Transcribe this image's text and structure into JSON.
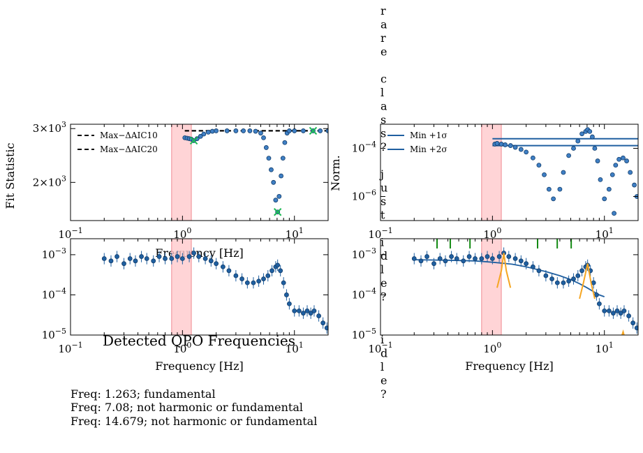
{
  "chart_data": [
    {
      "id": "fit-statistic",
      "type": "scatter",
      "xlabel": "Frequency [Hz]",
      "ylabel": "Fit Statistic",
      "xscale": "log",
      "yscale": "log",
      "xlim": [
        0.1,
        20
      ],
      "ylim": [
        1500,
        3100
      ],
      "xticks": [
        {
          "value": 0.1,
          "label": "10^-1"
        },
        {
          "value": 1,
          "label": "10^0"
        },
        {
          "value": 10,
          "label": "10^1"
        }
      ],
      "yticks": [
        {
          "value": 2000,
          "label": "2×10^3"
        },
        {
          "value": 3000,
          "label": "3×10^3"
        }
      ],
      "shaded_band": [
        0.8,
        1.2
      ],
      "reference_lines": [
        {
          "name": "Max−ΔAIC10",
          "y": 2950,
          "style": "dashed"
        },
        {
          "name": "Max−ΔAIC20",
          "y": 2950,
          "style": "dashed"
        }
      ],
      "legend": {
        "position": "top-left",
        "entries": [
          "Max−ΔAIC10",
          "Max−ΔAIC20"
        ]
      },
      "points": [
        [
          1.05,
          2800
        ],
        [
          1.1,
          2790
        ],
        [
          1.15,
          2780
        ],
        [
          1.2,
          2770
        ],
        [
          1.26,
          2740
        ],
        [
          1.35,
          2780
        ],
        [
          1.45,
          2830
        ],
        [
          1.55,
          2880
        ],
        [
          1.7,
          2920
        ],
        [
          1.85,
          2940
        ],
        [
          2.0,
          2950
        ],
        [
          2.5,
          2950
        ],
        [
          3.0,
          2950
        ],
        [
          3.5,
          2950
        ],
        [
          4.0,
          2950
        ],
        [
          4.5,
          2940
        ],
        [
          5.0,
          2900
        ],
        [
          5.3,
          2800
        ],
        [
          5.6,
          2600
        ],
        [
          5.9,
          2400
        ],
        [
          6.2,
          2200
        ],
        [
          6.5,
          2000
        ],
        [
          6.8,
          1750
        ],
        [
          7.08,
          1600
        ],
        [
          7.3,
          1800
        ],
        [
          7.6,
          2100
        ],
        [
          7.9,
          2400
        ],
        [
          8.2,
          2700
        ],
        [
          8.6,
          2900
        ],
        [
          9.0,
          2950
        ],
        [
          10,
          2950
        ],
        [
          12,
          2950
        ],
        [
          14.679,
          2950
        ],
        [
          17,
          2950
        ],
        [
          20,
          2950
        ]
      ],
      "markers": [
        [
          1.263,
          2740
        ],
        [
          7.08,
          1600
        ],
        [
          14.679,
          2950
        ]
      ]
    },
    {
      "id": "normalized",
      "type": "scatter",
      "xlabel": "",
      "ylabel": "Norm.",
      "xscale": "log",
      "yscale": "log",
      "xlim": [
        0.1,
        20
      ],
      "ylim": [
        1e-07,
        0.001
      ],
      "xticks": [
        {
          "value": 0.1,
          "label": "10^-1"
        },
        {
          "value": 1,
          "label": "10^0"
        },
        {
          "value": 10,
          "label": "10^1"
        }
      ],
      "yticks": [
        {
          "value": 1e-06,
          "label": "10^-6"
        },
        {
          "value": 0.0001,
          "label": "10^-4"
        }
      ],
      "shaded_band": [
        0.8,
        1.2
      ],
      "reference_lines": [
        {
          "name": "Min +1σ",
          "y": 0.00025,
          "style": "solid"
        },
        {
          "name": "Min +2σ",
          "y": 0.00013,
          "style": "solid"
        }
      ],
      "legend": {
        "position": "top-left",
        "entries": [
          "Min +1σ",
          "Min +2σ"
        ]
      },
      "points": [
        [
          1.05,
          0.00015
        ],
        [
          1.1,
          0.00016
        ],
        [
          1.2,
          0.00015
        ],
        [
          1.3,
          0.00014
        ],
        [
          1.45,
          0.00013
        ],
        [
          1.6,
          0.00011
        ],
        [
          1.8,
          9e-05
        ],
        [
          2.0,
          7e-05
        ],
        [
          2.3,
          4e-05
        ],
        [
          2.6,
          2e-05
        ],
        [
          2.9,
          8e-06
        ],
        [
          3.2,
          2e-06
        ],
        [
          3.5,
          8e-07
        ],
        [
          4.0,
          2e-06
        ],
        [
          4.3,
          1e-05
        ],
        [
          4.8,
          5e-05
        ],
        [
          5.3,
          0.0001
        ],
        [
          5.8,
          0.0002
        ],
        [
          6.3,
          0.0004
        ],
        [
          6.8,
          0.0005
        ],
        [
          7.08,
          0.0006
        ],
        [
          7.4,
          0.0005
        ],
        [
          7.8,
          0.0003
        ],
        [
          8.2,
          0.0001
        ],
        [
          8.7,
          3e-05
        ],
        [
          9.2,
          5e-06
        ],
        [
          10,
          8e-07
        ],
        [
          11.0,
          2e-06
        ],
        [
          11.8,
          8e-06
        ],
        [
          12.6,
          2e-05
        ],
        [
          13.5,
          3.5e-05
        ],
        [
          14.679,
          4e-05
        ],
        [
          15.8,
          3e-05
        ],
        [
          17,
          1e-05
        ],
        [
          18.5,
          3e-06
        ],
        [
          19.5,
          1e-06
        ]
      ],
      "stray_points": [
        [
          12.2,
          2e-07
        ]
      ],
      "vertical_text": "rare class? just idle?"
    },
    {
      "id": "spectrum",
      "type": "scatter",
      "xlabel": "Frequency [Hz]",
      "ylabel": "",
      "xscale": "log",
      "yscale": "log",
      "xlim": [
        0.1,
        20
      ],
      "ylim": [
        1e-05,
        0.0025
      ],
      "xticks": [
        {
          "value": 0.1,
          "label": "10^-1"
        },
        {
          "value": 1,
          "label": "10^0"
        },
        {
          "value": 10,
          "label": "10^1"
        }
      ],
      "yticks": [
        {
          "value": 1e-05,
          "label": "10^-5"
        },
        {
          "value": 0.0001,
          "label": "10^-4"
        },
        {
          "value": 0.001,
          "label": "10^-3"
        }
      ],
      "shaded_band": [
        0.8,
        1.2
      ],
      "points": [
        [
          0.2,
          0.0008
        ],
        [
          0.23,
          0.0007
        ],
        [
          0.26,
          0.0009
        ],
        [
          0.3,
          0.0006
        ],
        [
          0.34,
          0.0008
        ],
        [
          0.38,
          0.0007
        ],
        [
          0.43,
          0.0009
        ],
        [
          0.48,
          0.0008
        ],
        [
          0.55,
          0.0007
        ],
        [
          0.62,
          0.0009
        ],
        [
          0.7,
          0.0008
        ],
        [
          0.8,
          0.0008
        ],
        [
          0.9,
          0.0009
        ],
        [
          1.0,
          0.0008
        ],
        [
          1.15,
          0.0009
        ],
        [
          1.263,
          0.0011
        ],
        [
          1.4,
          0.0009
        ],
        [
          1.6,
          0.0008
        ],
        [
          1.8,
          0.0007
        ],
        [
          2.0,
          0.0006
        ],
        [
          2.3,
          0.0005
        ],
        [
          2.6,
          0.0004
        ],
        [
          3.0,
          0.0003
        ],
        [
          3.4,
          0.00025
        ],
        [
          3.8,
          0.0002
        ],
        [
          4.3,
          0.0002
        ],
        [
          4.8,
          0.00022
        ],
        [
          5.3,
          0.00025
        ],
        [
          5.8,
          0.0003
        ],
        [
          6.3,
          0.0004
        ],
        [
          6.8,
          0.0005
        ],
        [
          7.08,
          0.00055
        ],
        [
          7.5,
          0.0004
        ],
        [
          8.0,
          0.0002
        ],
        [
          8.5,
          0.0001
        ],
        [
          9.0,
          6e-05
        ],
        [
          10,
          4e-05
        ],
        [
          11,
          4e-05
        ],
        [
          12,
          3.5e-05
        ],
        [
          13,
          4e-05
        ],
        [
          14,
          3.5e-05
        ],
        [
          15,
          4e-05
        ],
        [
          16.5,
          3e-05
        ],
        [
          18,
          2e-05
        ],
        [
          19.5,
          1.5e-05
        ]
      ]
    },
    {
      "id": "spectrum-fit",
      "type": "scatter",
      "xlabel": "Frequency [Hz]",
      "ylabel": "",
      "xscale": "log",
      "yscale": "log",
      "xlim": [
        0.1,
        20
      ],
      "ylim": [
        1e-05,
        0.0025
      ],
      "xticks": [
        {
          "value": 0.1,
          "label": "10^-1"
        },
        {
          "value": 1,
          "label": "10^0"
        },
        {
          "value": 10,
          "label": "10^1"
        }
      ],
      "yticks": [
        {
          "value": 1e-05,
          "label": "10^-5"
        },
        {
          "value": 0.0001,
          "label": "10^-4"
        },
        {
          "value": 0.001,
          "label": "10^-3"
        }
      ],
      "shaded_band": [
        0.8,
        1.2
      ],
      "model_line": [
        [
          0.2,
          0.00075
        ],
        [
          0.4,
          0.00073
        ],
        [
          0.7,
          0.0007
        ],
        [
          1.0,
          0.00065
        ],
        [
          1.5,
          0.00058
        ],
        [
          2.0,
          0.0005
        ],
        [
          3.0,
          0.00038
        ],
        [
          4.0,
          0.0003
        ],
        [
          5.0,
          0.00024
        ],
        [
          6.0,
          0.00019
        ],
        [
          7.0,
          0.00015
        ],
        [
          8.0,
          0.00012
        ],
        [
          9.0,
          0.0001
        ],
        [
          10,
          9e-05
        ]
      ],
      "qpo_curves": [
        [
          [
            1.1,
            0.00015
          ],
          [
            1.2,
            0.0004
          ],
          [
            1.263,
            0.0011
          ],
          [
            1.33,
            0.0004
          ],
          [
            1.45,
            0.00015
          ]
        ],
        [
          [
            6.0,
            8e-05
          ],
          [
            6.5,
            0.0002
          ],
          [
            7.08,
            0.0006
          ],
          [
            7.6,
            0.0002
          ],
          [
            8.2,
            8e-05
          ]
        ],
        [
          [
            14.0,
            8e-06
          ],
          [
            14.679,
            1.2e-05
          ],
          [
            15.3,
            8e-06
          ]
        ]
      ],
      "harmonic_ticks": [
        0.32,
        0.42,
        0.63,
        2.53,
        3.79,
        5.05
      ],
      "points": [
        [
          0.2,
          0.0008
        ],
        [
          0.23,
          0.0007
        ],
        [
          0.26,
          0.0009
        ],
        [
          0.3,
          0.0006
        ],
        [
          0.34,
          0.0008
        ],
        [
          0.38,
          0.0007
        ],
        [
          0.43,
          0.0009
        ],
        [
          0.48,
          0.0008
        ],
        [
          0.55,
          0.0007
        ],
        [
          0.62,
          0.0009
        ],
        [
          0.7,
          0.0008
        ],
        [
          0.8,
          0.0008
        ],
        [
          0.9,
          0.0009
        ],
        [
          1.0,
          0.0008
        ],
        [
          1.15,
          0.0009
        ],
        [
          1.263,
          0.0011
        ],
        [
          1.4,
          0.0009
        ],
        [
          1.6,
          0.0008
        ],
        [
          1.8,
          0.0007
        ],
        [
          2.0,
          0.0006
        ],
        [
          2.3,
          0.0005
        ],
        [
          2.6,
          0.0004
        ],
        [
          3.0,
          0.0003
        ],
        [
          3.4,
          0.00025
        ],
        [
          3.8,
          0.0002
        ],
        [
          4.3,
          0.0002
        ],
        [
          4.8,
          0.00022
        ],
        [
          5.3,
          0.00025
        ],
        [
          5.8,
          0.0003
        ],
        [
          6.3,
          0.0004
        ],
        [
          6.8,
          0.0005
        ],
        [
          7.08,
          0.00055
        ],
        [
          7.5,
          0.0004
        ],
        [
          8.0,
          0.0002
        ],
        [
          8.5,
          0.0001
        ],
        [
          9.0,
          6e-05
        ],
        [
          10,
          4e-05
        ],
        [
          11,
          4e-05
        ],
        [
          12,
          3.5e-05
        ],
        [
          13,
          4e-05
        ],
        [
          14,
          3.5e-05
        ],
        [
          15,
          4e-05
        ],
        [
          16.5,
          3e-05
        ],
        [
          18,
          2e-05
        ],
        [
          19.5,
          1.5e-05
        ]
      ],
      "vertical_text": "idle?"
    }
  ],
  "report": {
    "title": "Detected QPO Frequencies",
    "lines": [
      "Freq: 1.263; fundamental",
      "Freq: 7.08; not harmonic or fundamental",
      "Freq: 14.679; not harmonic or fundamental"
    ]
  },
  "colors": {
    "points": "#1f5fa0",
    "points_edge": "#123d6b",
    "band": "#ffc9cc",
    "band_edge": "#f08a93",
    "markers": "#1db954",
    "model": "#1f5fa0",
    "qpo": "#f5a623",
    "harmonics": "#138a13",
    "ref_lines": "#1f5fa0"
  }
}
